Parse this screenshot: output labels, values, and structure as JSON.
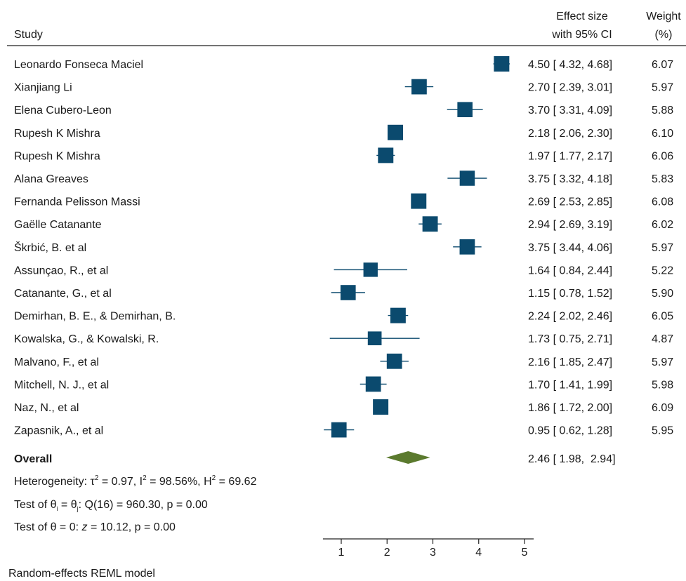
{
  "header": {
    "study": "Study",
    "effect_line1": "Effect size",
    "effect_line2": "with 95% CI",
    "weight_line1": "Weight",
    "weight_line2": "(%)"
  },
  "chart_data": {
    "type": "forest",
    "marker_color": "#0b4a6e",
    "diamond_color": "#5b7a2e",
    "x_ticks": [
      "1",
      "2",
      "3",
      "4",
      "5"
    ],
    "xlim": [
      0.6,
      5.2
    ],
    "studies": [
      {
        "name": "Leonardo Fonseca Maciel",
        "es": 4.5,
        "lo": 4.32,
        "hi": 4.68,
        "weight": 6.07,
        "ci_text": "4.50 [ 4.32,  4.68]",
        "weight_text": "6.07"
      },
      {
        "name": "Xianjiang Li",
        "es": 2.7,
        "lo": 2.39,
        "hi": 3.01,
        "weight": 5.97,
        "ci_text": "2.70 [ 2.39,  3.01]",
        "weight_text": "5.97"
      },
      {
        "name": "Elena Cubero-Leon",
        "es": 3.7,
        "lo": 3.31,
        "hi": 4.09,
        "weight": 5.88,
        "ci_text": "3.70 [ 3.31,  4.09]",
        "weight_text": "5.88"
      },
      {
        "name": "Rupesh K Mishra",
        "es": 2.18,
        "lo": 2.06,
        "hi": 2.3,
        "weight": 6.1,
        "ci_text": "2.18 [ 2.06,  2.30]",
        "weight_text": "6.10"
      },
      {
        "name": "Rupesh K Mishra",
        "es": 1.97,
        "lo": 1.77,
        "hi": 2.17,
        "weight": 6.06,
        "ci_text": "1.97 [ 1.77,  2.17]",
        "weight_text": "6.06"
      },
      {
        "name": "Alana Greaves",
        "es": 3.75,
        "lo": 3.32,
        "hi": 4.18,
        "weight": 5.83,
        "ci_text": "3.75 [ 3.32,  4.18]",
        "weight_text": "5.83"
      },
      {
        "name": "Fernanda Pelisson Massi",
        "es": 2.69,
        "lo": 2.53,
        "hi": 2.85,
        "weight": 6.08,
        "ci_text": "2.69 [ 2.53,  2.85]",
        "weight_text": "6.08"
      },
      {
        "name": "Gaëlle Catanante",
        "es": 2.94,
        "lo": 2.69,
        "hi": 3.19,
        "weight": 6.02,
        "ci_text": "2.94 [ 2.69,  3.19]",
        "weight_text": "6.02"
      },
      {
        "name": "Škrbić, B. et al",
        "es": 3.75,
        "lo": 3.44,
        "hi": 4.06,
        "weight": 5.97,
        "ci_text": "3.75 [ 3.44,  4.06]",
        "weight_text": "5.97"
      },
      {
        "name": "Assunçao, R., et al",
        "es": 1.64,
        "lo": 0.84,
        "hi": 2.44,
        "weight": 5.22,
        "ci_text": "1.64 [ 0.84,  2.44]",
        "weight_text": "5.22"
      },
      {
        "name": "Catanante, G., et al",
        "es": 1.15,
        "lo": 0.78,
        "hi": 1.52,
        "weight": 5.9,
        "ci_text": "1.15 [ 0.78,  1.52]",
        "weight_text": "5.90"
      },
      {
        "name": "Demirhan, B. E., & Demirhan, B.",
        "es": 2.24,
        "lo": 2.02,
        "hi": 2.46,
        "weight": 6.05,
        "ci_text": "2.24 [ 2.02,  2.46]",
        "weight_text": "6.05"
      },
      {
        "name": "Kowalska, G., & Kowalski, R.",
        "es": 1.73,
        "lo": 0.75,
        "hi": 2.71,
        "weight": 4.87,
        "ci_text": "1.73 [ 0.75,  2.71]",
        "weight_text": "4.87"
      },
      {
        "name": "Malvano, F., et al",
        "es": 2.16,
        "lo": 1.85,
        "hi": 2.47,
        "weight": 5.97,
        "ci_text": "2.16 [ 1.85,  2.47]",
        "weight_text": "5.97"
      },
      {
        "name": "Mitchell, N. J., et al",
        "es": 1.7,
        "lo": 1.41,
        "hi": 1.99,
        "weight": 5.98,
        "ci_text": "1.70 [ 1.41,  1.99]",
        "weight_text": "5.98"
      },
      {
        "name": "Naz, N., et al",
        "es": 1.86,
        "lo": 1.72,
        "hi": 2.0,
        "weight": 6.09,
        "ci_text": "1.86 [ 1.72,  2.00]",
        "weight_text": "6.09"
      },
      {
        "name": "Zapasnik, A., et al",
        "es": 0.95,
        "lo": 0.62,
        "hi": 1.28,
        "weight": 5.95,
        "ci_text": "0.95 [ 0.62,  1.28]",
        "weight_text": "5.95"
      }
    ],
    "overall": {
      "name": "Overall",
      "es": 2.46,
      "lo": 1.98,
      "hi": 2.94,
      "ci_text": "2.46 [ 1.98,  2.94]"
    },
    "heterogeneity": {
      "prefix": "Heterogeneity: τ",
      "tau_sup": "2",
      "tau_val": " = 0.97, I",
      "i_sup": "2",
      "i_val": " = 98.56%, H",
      "h_sup": "2",
      "h_val": " = 69.62"
    },
    "test_theta_i": {
      "prefix": "Test of θ",
      "sub_i": "i",
      "mid": " = θ",
      "sub_j": "j",
      "suffix": ": Q(16) = 960.30, p = 0.00"
    },
    "test_theta": {
      "prefix": "Test of θ = 0: ",
      "z": "z",
      "suffix": " = 10.12, p = 0.00"
    },
    "model_note": "Random-effects REML model"
  }
}
